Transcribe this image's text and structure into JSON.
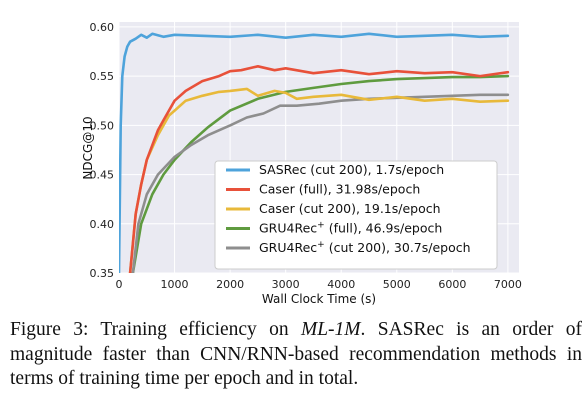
{
  "chart_data": {
    "type": "line",
    "xlabel": "Wall Clock Time (s)",
    "ylabel": "NDCG@10",
    "xlim": [
      0,
      7200
    ],
    "ylim": [
      0.35,
      0.605
    ],
    "x_ticks": [
      0,
      1000,
      2000,
      3000,
      4000,
      5000,
      6000,
      7000
    ],
    "y_ticks": [
      0.35,
      0.4,
      0.45,
      0.5,
      0.55,
      0.6
    ],
    "x_tick_labels": [
      "0",
      "1000",
      "2000",
      "3000",
      "4000",
      "5000",
      "6000",
      "7000"
    ],
    "y_tick_labels": [
      "0.35",
      "0.40",
      "0.45",
      "0.50",
      "0.55",
      "0.60"
    ],
    "grid": true,
    "legend_position": "lower-right",
    "series": [
      {
        "name": "SASRec (cut 200), 1.7s/epoch",
        "name_parts": [
          "SASRec (cut 200), 1.7s/epoch"
        ],
        "color": "#4ea3db",
        "x": [
          0,
          30,
          60,
          100,
          150,
          200,
          300,
          400,
          500,
          600,
          800,
          1000,
          1500,
          2000,
          2500,
          3000,
          3500,
          4000,
          4500,
          5000,
          5500,
          6000,
          6500,
          7000
        ],
        "y": [
          0.35,
          0.5,
          0.55,
          0.57,
          0.58,
          0.585,
          0.588,
          0.592,
          0.589,
          0.593,
          0.59,
          0.592,
          0.591,
          0.59,
          0.592,
          0.589,
          0.592,
          0.59,
          0.593,
          0.59,
          0.591,
          0.592,
          0.59,
          0.591
        ]
      },
      {
        "name": "Caser (full), 31.98s/epoch",
        "name_parts": [
          "Caser (full), 31.98s/epoch"
        ],
        "color": "#e8513a",
        "x": [
          200,
          300,
          400,
          500,
          700,
          800,
          1000,
          1200,
          1500,
          1800,
          2000,
          2200,
          2500,
          2800,
          3000,
          3500,
          4000,
          4500,
          5000,
          5500,
          6000,
          6500,
          7000
        ],
        "y": [
          0.35,
          0.41,
          0.44,
          0.465,
          0.495,
          0.505,
          0.525,
          0.535,
          0.545,
          0.55,
          0.555,
          0.556,
          0.56,
          0.556,
          0.558,
          0.553,
          0.556,
          0.552,
          0.555,
          0.553,
          0.554,
          0.55,
          0.554
        ]
      },
      {
        "name": "Caser (cut 200), 19.1s/epoch",
        "name_parts": [
          "Caser (cut 200), 19.1s/epoch"
        ],
        "color": "#e8b93a",
        "x": [
          200,
          300,
          400,
          500,
          700,
          900,
          1000,
          1200,
          1500,
          1800,
          2000,
          2300,
          2500,
          2800,
          3000,
          3200,
          3500,
          4000,
          4500,
          5000,
          5500,
          6000,
          6500,
          7000
        ],
        "y": [
          0.35,
          0.41,
          0.44,
          0.465,
          0.49,
          0.51,
          0.515,
          0.525,
          0.53,
          0.534,
          0.535,
          0.537,
          0.53,
          0.535,
          0.533,
          0.527,
          0.529,
          0.531,
          0.526,
          0.529,
          0.525,
          0.527,
          0.524,
          0.525
        ]
      },
      {
        "name": "GRU4Rec⁺ (full), 46.9s/epoch",
        "name_parts": [
          "GRU4Rec",
          "+",
          " (full), 46.9s/epoch"
        ],
        "color": "#5f9b3f",
        "x": [
          250,
          400,
          600,
          800,
          1000,
          1300,
          1600,
          2000,
          2500,
          3000,
          3500,
          4000,
          4500,
          5000,
          5500,
          6000,
          6500,
          7000
        ],
        "y": [
          0.35,
          0.4,
          0.43,
          0.45,
          0.465,
          0.483,
          0.498,
          0.515,
          0.527,
          0.534,
          0.538,
          0.542,
          0.545,
          0.547,
          0.548,
          0.549,
          0.549,
          0.55
        ]
      },
      {
        "name": "GRU4Rec⁺ (cut 200), 30.7s/epoch",
        "name_parts": [
          "GRU4Rec",
          "+",
          " (cut 200), 30.7s/epoch"
        ],
        "color": "#8e8e8e",
        "x": [
          250,
          350,
          500,
          700,
          1000,
          1300,
          1600,
          2000,
          2300,
          2600,
          2900,
          3200,
          3600,
          4000,
          4500,
          5000,
          5500,
          6000,
          6500,
          7000
        ],
        "y": [
          0.35,
          0.4,
          0.43,
          0.45,
          0.468,
          0.48,
          0.49,
          0.5,
          0.508,
          0.512,
          0.52,
          0.52,
          0.522,
          0.525,
          0.527,
          0.528,
          0.529,
          0.53,
          0.531,
          0.531
        ]
      }
    ]
  },
  "caption": {
    "label": "Figure 3:",
    "text_before_emph": " Training efficiency on ",
    "emph": "ML-1M",
    "text_after_emph": ". SASRec is an order of magnitude faster than CNN/RNN-based recommendation methods in terms of training time per epoch and in total."
  }
}
